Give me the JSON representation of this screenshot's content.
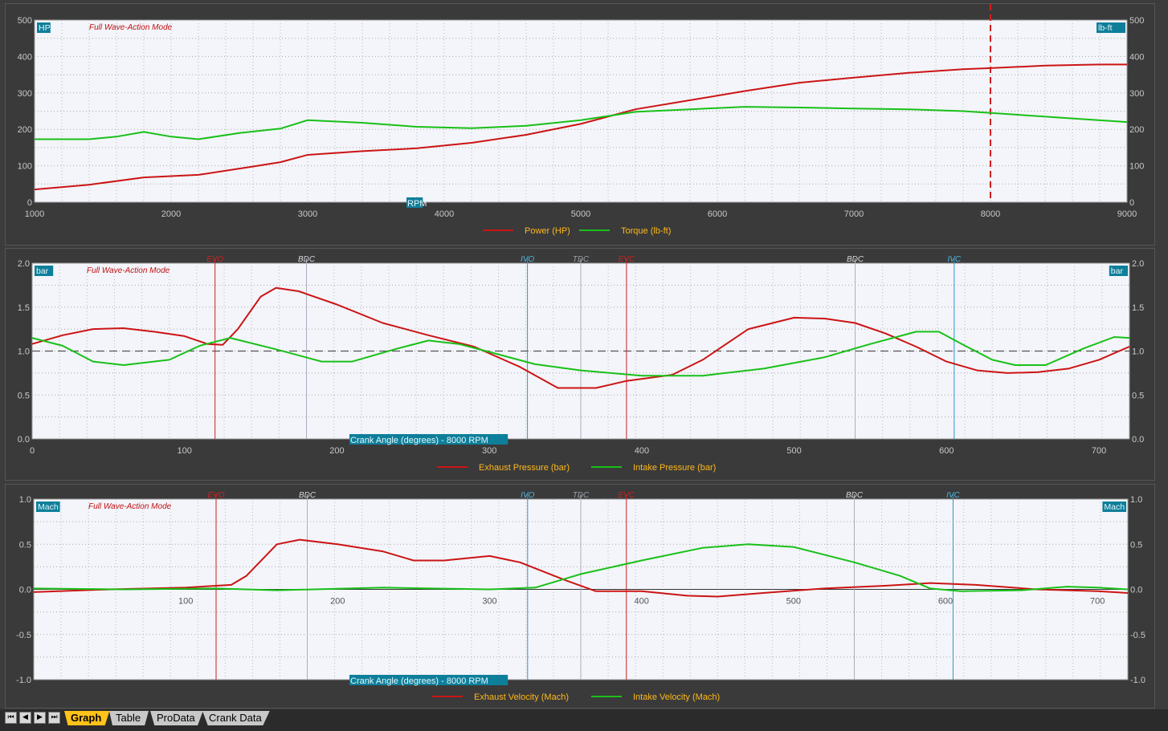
{
  "charts": [
    {
      "type": "line",
      "mode_label": "Full Wave-Action Mode",
      "left_unit": "HP",
      "right_unit": "lb-ft",
      "xlabel": "RPM",
      "xlim": [
        1000,
        9000
      ],
      "xticks": [
        1000,
        2000,
        3000,
        4000,
        5000,
        6000,
        7000,
        8000,
        9000
      ],
      "ylim": [
        0,
        500
      ],
      "yticks": [
        0,
        100,
        200,
        300,
        400,
        500
      ],
      "marker": {
        "x": 8000,
        "color": "#d02020"
      },
      "event_lines": [],
      "series": [
        {
          "name": "Power (HP)",
          "color": "#cc1414",
          "points": [
            [
              1000,
              35
            ],
            [
              1400,
              48
            ],
            [
              1800,
              68
            ],
            [
              2200,
              75
            ],
            [
              2600,
              98
            ],
            [
              2800,
              110
            ],
            [
              3000,
              130
            ],
            [
              3400,
              140
            ],
            [
              3800,
              148
            ],
            [
              4200,
              163
            ],
            [
              4600,
              185
            ],
            [
              5000,
              215
            ],
            [
              5400,
              255
            ],
            [
              5800,
              280
            ],
            [
              6200,
              305
            ],
            [
              6600,
              328
            ],
            [
              7000,
              342
            ],
            [
              7400,
              355
            ],
            [
              7800,
              365
            ],
            [
              8000,
              368
            ],
            [
              8400,
              375
            ],
            [
              8800,
              378
            ],
            [
              9000,
              378
            ]
          ]
        },
        {
          "name": "Torque (lb-ft)",
          "color": "#18c018",
          "points": [
            [
              1000,
              173
            ],
            [
              1400,
              173
            ],
            [
              1600,
              180
            ],
            [
              1800,
              193
            ],
            [
              2000,
              180
            ],
            [
              2200,
              173
            ],
            [
              2500,
              190
            ],
            [
              2800,
              202
            ],
            [
              3000,
              225
            ],
            [
              3400,
              218
            ],
            [
              3800,
              207
            ],
            [
              4200,
              203
            ],
            [
              4600,
              210
            ],
            [
              5000,
              225
            ],
            [
              5400,
              248
            ],
            [
              5800,
              255
            ],
            [
              6200,
              262
            ],
            [
              6600,
              260
            ],
            [
              7000,
              257
            ],
            [
              7400,
              255
            ],
            [
              7800,
              250
            ],
            [
              8200,
              240
            ],
            [
              8600,
              230
            ],
            [
              9000,
              220
            ]
          ]
        }
      ]
    },
    {
      "type": "line",
      "mode_label": "Full Wave-Action Mode",
      "left_unit": "bar",
      "right_unit": "bar",
      "xlabel": "Crank Angle (degrees) - 8000 RPM",
      "xlim": [
        0,
        720
      ],
      "xticks": [
        0,
        100,
        200,
        300,
        400,
        500,
        600,
        700
      ],
      "ylim": [
        0,
        2
      ],
      "yticks": [
        0.0,
        0.5,
        1.0,
        1.5,
        2.0
      ],
      "yfmt": 1,
      "baseline": 1.0,
      "event_lines": [
        {
          "label": "EVO",
          "x": 120,
          "color": "#cc2020",
          "label_color": "#d02020"
        },
        {
          "label": "BDC",
          "x": 180,
          "color": "#a8b0bc",
          "label_color": "#d8d8d8"
        },
        {
          "label": "IVO",
          "x": 325,
          "color": "#2a9ac8",
          "label_color": "#4fb8e0"
        },
        {
          "label": "TDC",
          "x": 360,
          "color": "#a8b0bc",
          "label_color": "#9aa0a8"
        },
        {
          "label": "EVC",
          "x": 390,
          "color": "#cc2020",
          "label_color": "#d02020"
        },
        {
          "label": "BDC",
          "x": 540,
          "color": "#a8b0bc",
          "label_color": "#d8d8d8"
        },
        {
          "label": "IVC",
          "x": 605,
          "color": "#2a9ac8",
          "label_color": "#4fb8e0"
        }
      ],
      "series": [
        {
          "name": "Exhaust Pressure (bar)",
          "color": "#cc1414",
          "points": [
            [
              0,
              1.08
            ],
            [
              20,
              1.18
            ],
            [
              40,
              1.25
            ],
            [
              60,
              1.26
            ],
            [
              80,
              1.22
            ],
            [
              100,
              1.17
            ],
            [
              115,
              1.08
            ],
            [
              125,
              1.07
            ],
            [
              135,
              1.25
            ],
            [
              150,
              1.62
            ],
            [
              160,
              1.72
            ],
            [
              175,
              1.68
            ],
            [
              200,
              1.53
            ],
            [
              230,
              1.32
            ],
            [
              260,
              1.18
            ],
            [
              290,
              1.05
            ],
            [
              320,
              0.82
            ],
            [
              345,
              0.58
            ],
            [
              370,
              0.58
            ],
            [
              390,
              0.66
            ],
            [
              420,
              0.73
            ],
            [
              440,
              0.9
            ],
            [
              470,
              1.25
            ],
            [
              500,
              1.38
            ],
            [
              520,
              1.37
            ],
            [
              540,
              1.32
            ],
            [
              560,
              1.2
            ],
            [
              580,
              1.05
            ],
            [
              600,
              0.88
            ],
            [
              620,
              0.78
            ],
            [
              640,
              0.75
            ],
            [
              660,
              0.76
            ],
            [
              680,
              0.8
            ],
            [
              700,
              0.9
            ],
            [
              720,
              1.05
            ]
          ]
        },
        {
          "name": "Intake Pressure (bar)",
          "color": "#18c018",
          "points": [
            [
              0,
              1.15
            ],
            [
              20,
              1.06
            ],
            [
              40,
              0.88
            ],
            [
              60,
              0.84
            ],
            [
              90,
              0.9
            ],
            [
              110,
              1.06
            ],
            [
              130,
              1.15
            ],
            [
              160,
              1.02
            ],
            [
              190,
              0.88
            ],
            [
              210,
              0.88
            ],
            [
              240,
              1.03
            ],
            [
              260,
              1.12
            ],
            [
              280,
              1.08
            ],
            [
              300,
              0.99
            ],
            [
              330,
              0.85
            ],
            [
              360,
              0.78
            ],
            [
              400,
              0.72
            ],
            [
              440,
              0.72
            ],
            [
              480,
              0.8
            ],
            [
              520,
              0.93
            ],
            [
              550,
              1.08
            ],
            [
              580,
              1.22
            ],
            [
              595,
              1.22
            ],
            [
              610,
              1.08
            ],
            [
              630,
              0.9
            ],
            [
              645,
              0.84
            ],
            [
              665,
              0.84
            ],
            [
              690,
              1.03
            ],
            [
              710,
              1.16
            ],
            [
              720,
              1.15
            ]
          ]
        }
      ]
    },
    {
      "type": "line",
      "mode_label": "Full Wave-Action Mode",
      "left_unit": "Mach",
      "right_unit": "Mach",
      "xlabel": "Crank Angle (degrees) - 8000 RPM",
      "xlim": [
        0,
        720
      ],
      "xticks": [
        100,
        200,
        300,
        400,
        500,
        600,
        700
      ],
      "xticks_inside": true,
      "ylim": [
        -1,
        1
      ],
      "yticks": [
        -1.0,
        -0.5,
        0.0,
        0.5,
        1.0
      ],
      "yfmt": 1,
      "zero_line": true,
      "event_lines": [
        {
          "label": "EVO",
          "x": 120,
          "color": "#cc2020",
          "label_color": "#d02020"
        },
        {
          "label": "BDC",
          "x": 180,
          "color": "#a8b0bc",
          "label_color": "#d8d8d8"
        },
        {
          "label": "IVO",
          "x": 325,
          "color": "#2a9ac8",
          "label_color": "#4fb8e0"
        },
        {
          "label": "TDC",
          "x": 360,
          "color": "#a8b0bc",
          "label_color": "#9aa0a8"
        },
        {
          "label": "EVC",
          "x": 390,
          "color": "#cc2020",
          "label_color": "#d02020"
        },
        {
          "label": "BDC",
          "x": 540,
          "color": "#a8b0bc",
          "label_color": "#d8d8d8"
        },
        {
          "label": "IVC",
          "x": 605,
          "color": "#2a9ac8",
          "label_color": "#4fb8e0"
        }
      ],
      "series": [
        {
          "name": "Exhaust Velocity (Mach)",
          "color": "#cc1414",
          "points": [
            [
              0,
              -0.03
            ],
            [
              50,
              0
            ],
            [
              100,
              0.02
            ],
            [
              130,
              0.05
            ],
            [
              140,
              0.15
            ],
            [
              160,
              0.5
            ],
            [
              175,
              0.55
            ],
            [
              200,
              0.5
            ],
            [
              230,
              0.42
            ],
            [
              250,
              0.32
            ],
            [
              270,
              0.32
            ],
            [
              300,
              0.37
            ],
            [
              320,
              0.3
            ],
            [
              350,
              0.1
            ],
            [
              370,
              -0.02
            ],
            [
              400,
              -0.02
            ],
            [
              430,
              -0.07
            ],
            [
              450,
              -0.08
            ],
            [
              480,
              -0.04
            ],
            [
              520,
              0.01
            ],
            [
              560,
              0.04
            ],
            [
              590,
              0.07
            ],
            [
              620,
              0.05
            ],
            [
              660,
              0
            ],
            [
              700,
              -0.02
            ],
            [
              720,
              -0.04
            ]
          ]
        },
        {
          "name": "Intake Velocity (Mach)",
          "color": "#18c018",
          "points": [
            [
              0,
              0.01
            ],
            [
              60,
              0
            ],
            [
              120,
              0.01
            ],
            [
              160,
              -0.01
            ],
            [
              230,
              0.02
            ],
            [
              300,
              0
            ],
            [
              330,
              0.02
            ],
            [
              360,
              0.17
            ],
            [
              400,
              0.32
            ],
            [
              440,
              0.46
            ],
            [
              470,
              0.5
            ],
            [
              500,
              0.47
            ],
            [
              540,
              0.3
            ],
            [
              570,
              0.15
            ],
            [
              590,
              0.01
            ],
            [
              610,
              -0.02
            ],
            [
              650,
              -0.01
            ],
            [
              680,
              0.03
            ],
            [
              700,
              0.02
            ],
            [
              720,
              0
            ]
          ]
        }
      ]
    }
  ],
  "tabs": [
    {
      "label": "Graph",
      "active": true
    },
    {
      "label": "Table",
      "active": false
    },
    {
      "label": "ProData",
      "active": false
    },
    {
      "label": "Crank Data",
      "active": false
    }
  ],
  "nav_icons": [
    "first-icon",
    "prev-icon",
    "next-icon",
    "last-icon"
  ]
}
